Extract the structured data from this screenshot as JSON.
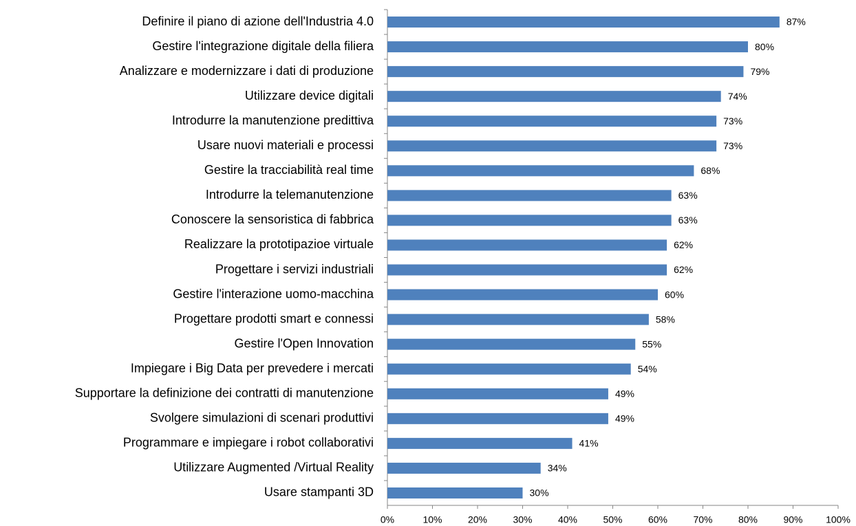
{
  "chart_data": {
    "type": "bar",
    "orientation": "horizontal",
    "color": "#4f81bd",
    "categories": [
      "Definire il piano di azione dell'Industria 4.0",
      "Gestire l'integrazione digitale della filiera",
      "Analizzare e modernizzare i dati di produzione",
      "Utilizzare device digitali",
      "Introdurre la manutenzione predittiva",
      "Usare nuovi materiali e processi",
      "Gestire la tracciabilità real time",
      "Introdurre la telemanutenzione",
      "Conoscere la sensoristica di fabbrica",
      "Realizzare la prototipazioe virtuale",
      "Progettare i servizi industriali",
      "Gestire l'interazione uomo-macchina",
      "Progettare prodotti smart e connessi",
      "Gestire l'Open Innovation",
      "Impiegare i Big Data per prevedere i mercati",
      "Supportare la definizione dei contratti di manutenzione",
      "Svolgere simulazioni di scenari produttivi",
      "Programmare e impiegare i robot collaborativi",
      "Utilizzare Augmented /Virtual Reality",
      "Usare stampanti 3D"
    ],
    "values": [
      87,
      80,
      79,
      74,
      73,
      73,
      68,
      63,
      63,
      62,
      62,
      60,
      58,
      55,
      54,
      49,
      49,
      41,
      34,
      30
    ],
    "value_labels": [
      "87%",
      "80%",
      "79%",
      "74%",
      "73%",
      "73%",
      "68%",
      "63%",
      "63%",
      "62%",
      "62%",
      "60%",
      "58%",
      "55%",
      "54%",
      "49%",
      "49%",
      "41%",
      "34%",
      "30%"
    ],
    "xlim": [
      0,
      100
    ],
    "xticks": [
      {
        "value": 0,
        "label": "0%"
      },
      {
        "value": 10,
        "label": "10%"
      },
      {
        "value": 20,
        "label": "20%"
      },
      {
        "value": 30,
        "label": "30%"
      },
      {
        "value": 40,
        "label": "40%"
      },
      {
        "value": 50,
        "label": "50%"
      },
      {
        "value": 60,
        "label": "60%"
      },
      {
        "value": 70,
        "label": "70%"
      },
      {
        "value": 80,
        "label": "80%"
      },
      {
        "value": 90,
        "label": "90%"
      },
      {
        "value": 100,
        "label": "100%"
      }
    ],
    "grid": false
  }
}
